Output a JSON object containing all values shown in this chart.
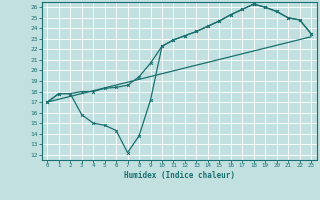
{
  "xlabel": "Humidex (Indice chaleur)",
  "xlim": [
    -0.5,
    23.5
  ],
  "ylim": [
    11.5,
    26.5
  ],
  "xticks": [
    0,
    1,
    2,
    3,
    4,
    5,
    6,
    7,
    8,
    9,
    10,
    11,
    12,
    13,
    14,
    15,
    16,
    17,
    18,
    19,
    20,
    21,
    22,
    23
  ],
  "yticks": [
    12,
    13,
    14,
    15,
    16,
    17,
    18,
    19,
    20,
    21,
    22,
    23,
    24,
    25,
    26
  ],
  "bg_color": "#c2e0e0",
  "line_color": "#1a7070",
  "grid_color": "#ffffff",
  "line1_x": [
    0,
    1,
    2,
    3,
    4,
    5,
    6,
    7,
    8,
    9,
    10,
    11,
    12,
    13,
    14,
    15,
    16,
    17,
    18,
    19,
    20,
    21,
    22,
    23
  ],
  "line1_y": [
    17.0,
    17.8,
    17.8,
    18.0,
    18.0,
    18.3,
    18.4,
    18.6,
    19.4,
    20.7,
    22.3,
    22.9,
    23.3,
    23.7,
    24.2,
    24.7,
    25.3,
    25.8,
    26.3,
    26.0,
    25.6,
    25.0,
    24.8,
    23.5
  ],
  "line2_x": [
    0,
    1,
    2,
    3,
    4,
    5,
    6,
    7,
    8,
    9,
    10,
    11,
    12,
    13,
    14,
    15,
    16,
    17,
    18,
    19,
    20,
    21,
    22,
    23
  ],
  "line2_y": [
    17.0,
    17.8,
    17.8,
    15.8,
    15.0,
    14.8,
    14.3,
    12.2,
    13.8,
    17.2,
    22.3,
    22.9,
    23.3,
    23.7,
    24.2,
    24.7,
    25.3,
    25.8,
    26.3,
    26.0,
    25.6,
    25.0,
    24.8,
    23.5
  ],
  "line3_x": [
    0,
    23
  ],
  "line3_y": [
    17.0,
    23.2
  ]
}
